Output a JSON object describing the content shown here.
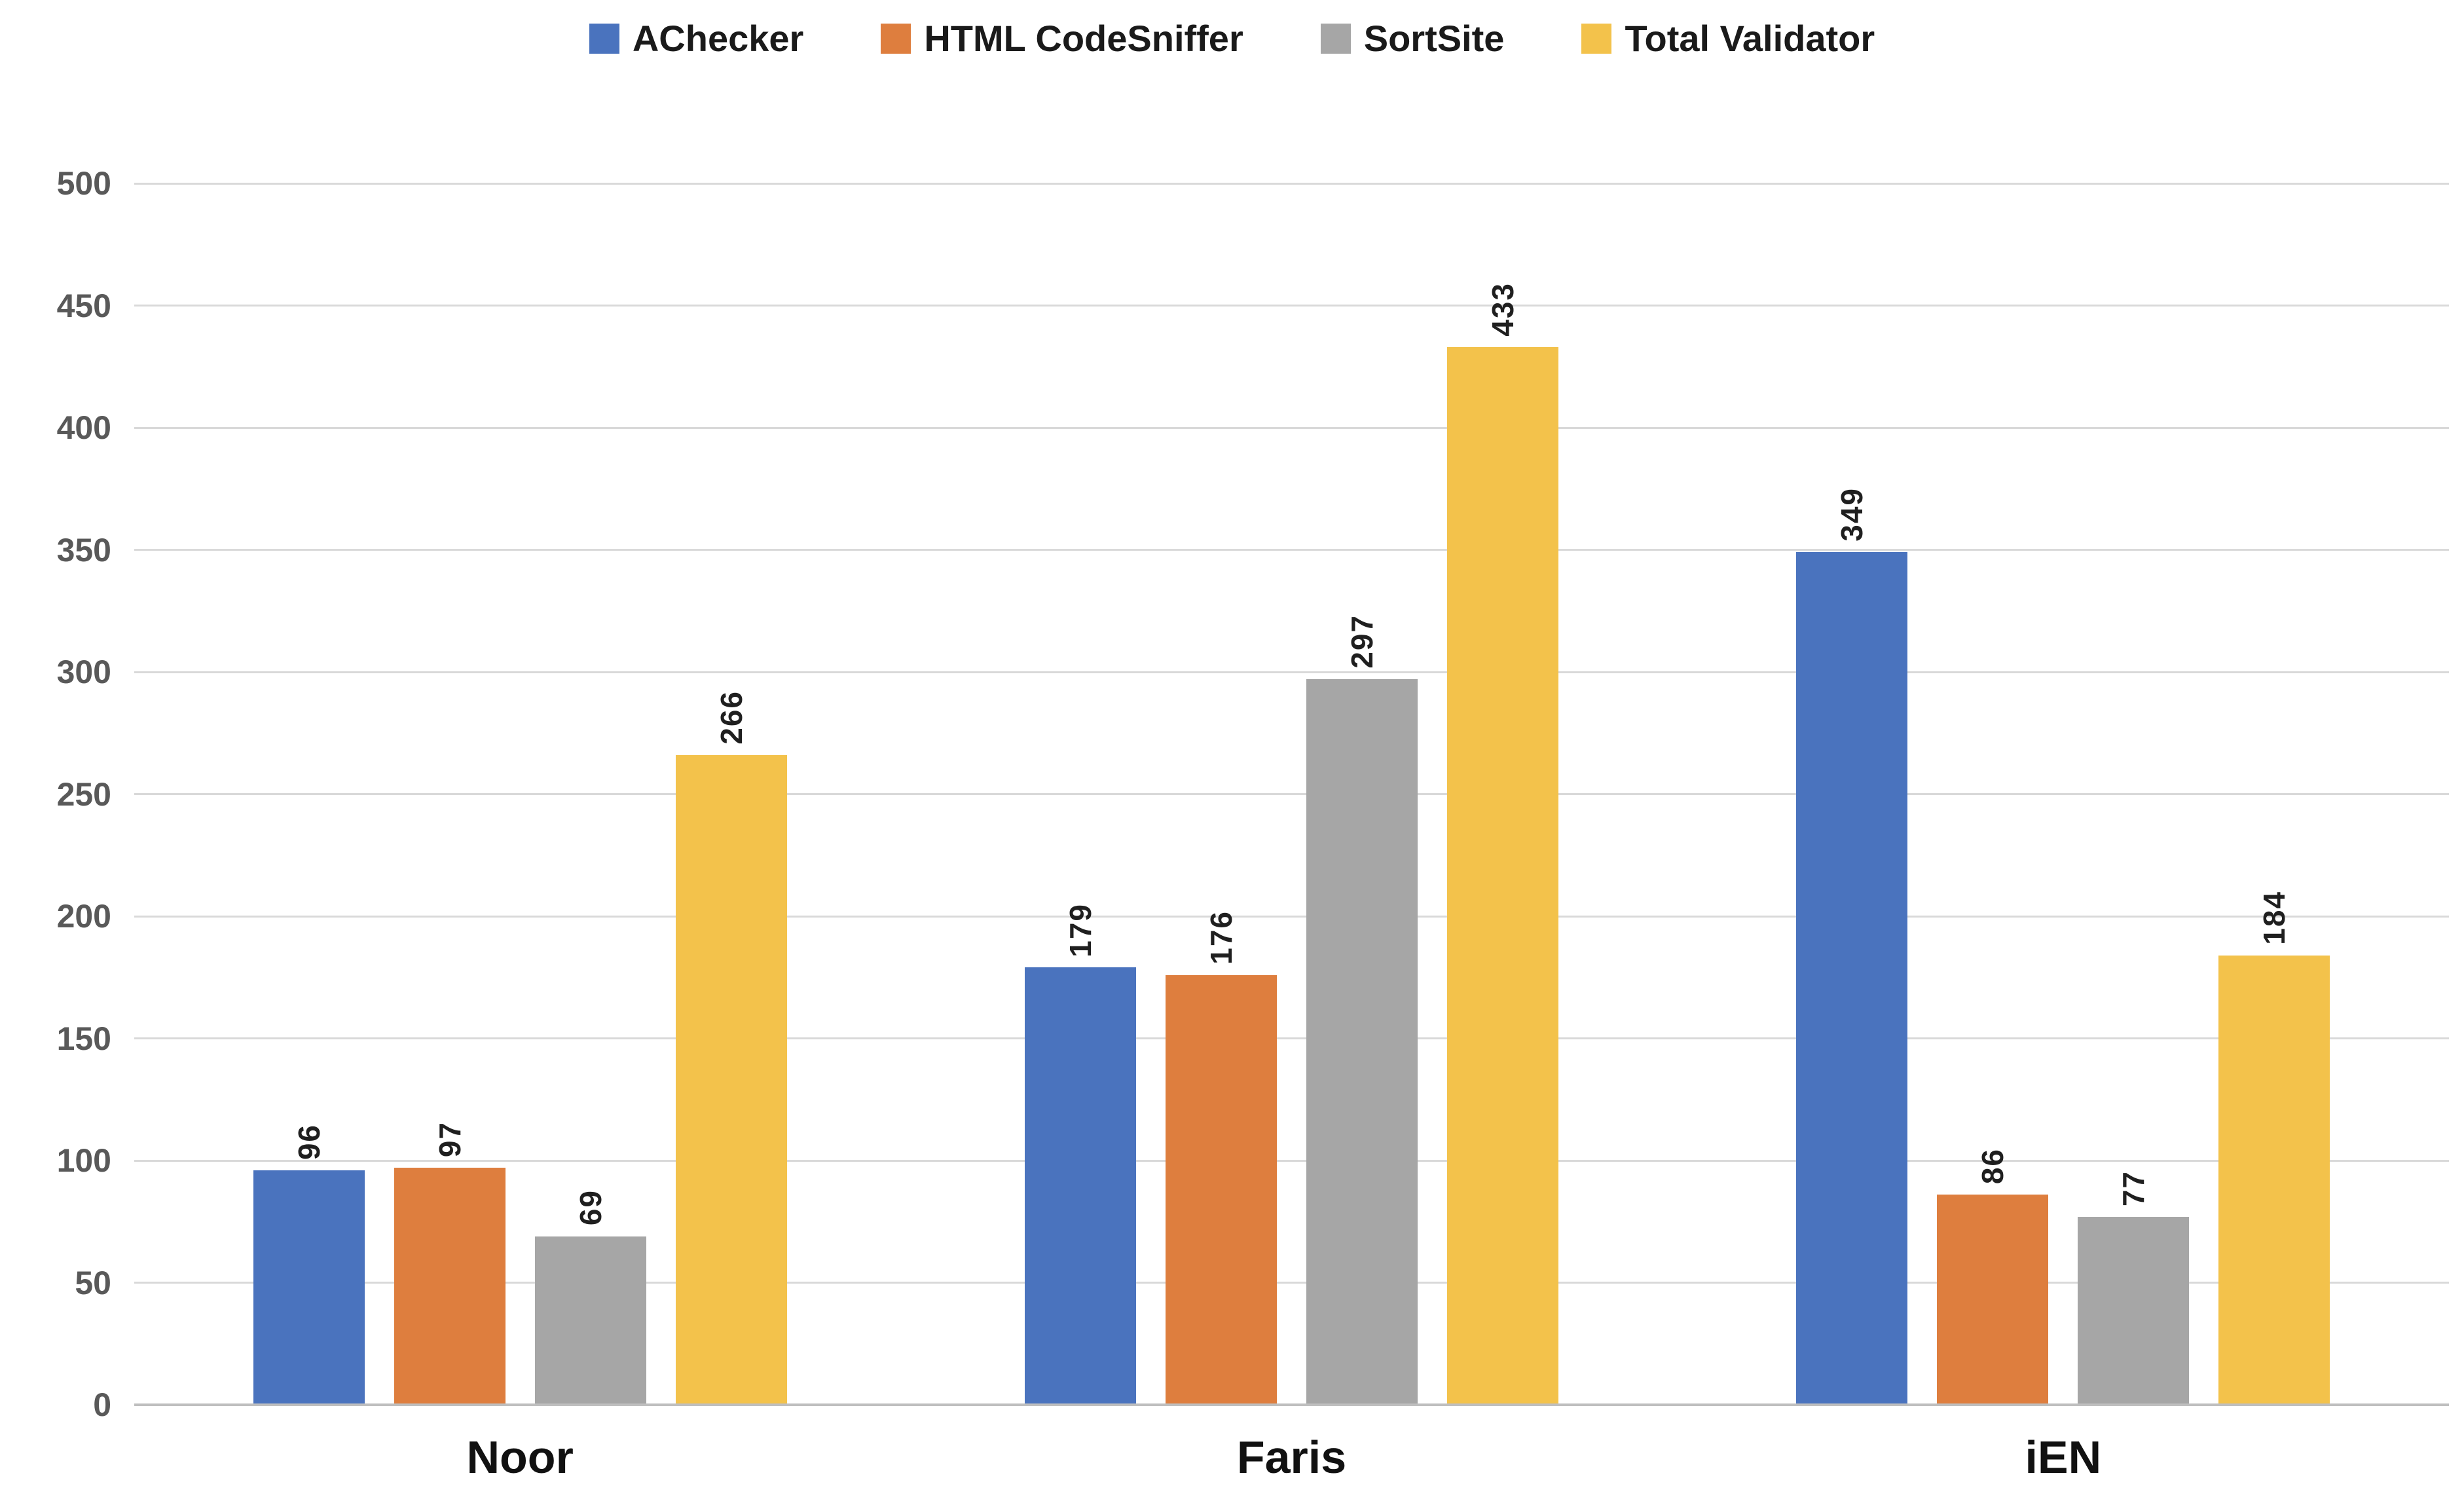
{
  "chart_data": {
    "type": "bar",
    "categories": [
      "Noor",
      "Faris",
      "iEN"
    ],
    "series": [
      {
        "name": "AChecker",
        "color": "#4a73be",
        "values": [
          96,
          179,
          349
        ]
      },
      {
        "name": "HTML CodeSniffer",
        "color": "#de7e3e",
        "values": [
          97,
          176,
          86
        ]
      },
      {
        "name": "SortSite",
        "color": "#a6a6a6",
        "values": [
          69,
          297,
          77
        ]
      },
      {
        "name": "Total Validator",
        "color": "#f3c24b",
        "values": [
          266,
          433,
          184
        ]
      }
    ],
    "title": "",
    "xlabel": "",
    "ylabel": "",
    "ylim": [
      0,
      500
    ],
    "ytick_step": 50,
    "yticks": [
      0,
      50,
      100,
      150,
      200,
      250,
      300,
      350,
      400,
      450,
      500
    ],
    "ytick_labels": [
      "0",
      "50",
      "100",
      "150",
      "200",
      "250",
      "300",
      "350",
      "400",
      "450",
      "500"
    ],
    "grid": true,
    "legend_position": "top",
    "data_labels": true,
    "data_label_rotation": -90
  },
  "colors": {
    "gridline": "#d9d9d9",
    "baseline": "#bfbfbf",
    "tick_text": "#595959",
    "label_text": "#1f1f1f",
    "category_text": "#111111",
    "background": "#ffffff"
  }
}
